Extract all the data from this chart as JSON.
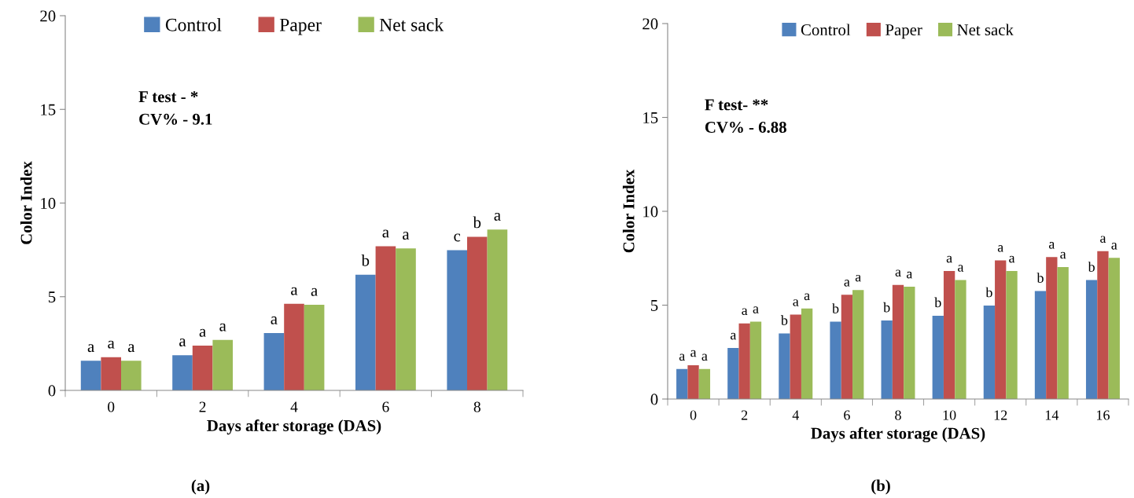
{
  "chart_data": [
    {
      "type": "bar",
      "xlabel": "Days after storage (DAS)",
      "ylabel": "Color Index",
      "categories": [
        "0",
        "2",
        "4",
        "6",
        "8"
      ],
      "series": [
        {
          "name": "Control",
          "color": "#4f81bd",
          "values": [
            1.58,
            1.88,
            3.06,
            6.17,
            7.48
          ],
          "value_labels": [
            "a",
            "a",
            "a",
            "b",
            "c"
          ]
        },
        {
          "name": "Paper",
          "color": "#c0504d",
          "values": [
            1.77,
            2.39,
            4.62,
            7.69,
            8.2
          ],
          "value_labels": [
            "a",
            "a",
            "a",
            "a",
            "b"
          ]
        },
        {
          "name": "Net sack",
          "color": "#9bbb59",
          "values": [
            1.58,
            2.69,
            4.57,
            7.58,
            8.59
          ],
          "value_labels": [
            "a",
            "a",
            "a",
            "a",
            "a"
          ]
        }
      ],
      "ylim": [
        0,
        20
      ],
      "yticks": [
        0,
        5,
        10,
        15,
        20
      ],
      "grid": false,
      "legend": "top",
      "annotations": [
        "F test - *",
        "CV% - 9.1",
        "(a)"
      ]
    },
    {
      "type": "bar",
      "xlabel": "Days after storage (DAS)",
      "ylabel": "Color Index",
      "categories": [
        "0",
        "2",
        "4",
        "6",
        "8",
        "10",
        "12",
        "14",
        "16"
      ],
      "series": [
        {
          "name": "Control",
          "color": "#4f81bd",
          "values": [
            1.6,
            2.72,
            3.49,
            4.12,
            4.18,
            4.44,
            4.98,
            5.75,
            6.34
          ],
          "value_labels": [
            "a",
            "a",
            "b",
            "b",
            "b",
            "b",
            "b",
            "b",
            "b"
          ]
        },
        {
          "name": "Paper",
          "color": "#c0504d",
          "values": [
            1.8,
            4.03,
            4.5,
            5.55,
            6.08,
            6.82,
            7.39,
            7.56,
            7.88
          ],
          "value_labels": [
            "a",
            "a",
            "a",
            "a",
            "a",
            "a",
            "a",
            "a",
            "a"
          ]
        },
        {
          "name": "Net sack",
          "color": "#9bbb59",
          "values": [
            1.6,
            4.12,
            4.82,
            5.81,
            5.98,
            6.34,
            6.82,
            7.03,
            7.52
          ],
          "value_labels": [
            "a",
            "a",
            "a",
            "a",
            "a",
            "a",
            "a",
            "a",
            "a"
          ]
        }
      ],
      "ylim": [
        0,
        20
      ],
      "yticks": [
        0,
        5,
        10,
        15,
        20
      ],
      "grid": false,
      "legend": "top",
      "annotations": [
        "F test- **",
        "CV% - 6.88",
        "(b)"
      ]
    }
  ]
}
